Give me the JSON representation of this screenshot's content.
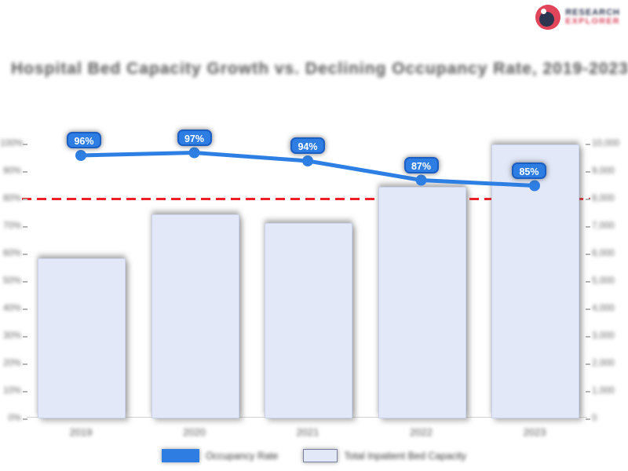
{
  "logo": {
    "icon": "donut-chart-logo-icon",
    "line1": "RESEARCH",
    "line2": "EXPLORER",
    "ring_color": "#E0455A",
    "core_color": "#2C3550"
  },
  "title": {
    "text": "Hospital Bed Capacity Growth vs. Declining Occupancy Rate, 2019-2023"
  },
  "chart_data": {
    "type": "bar",
    "subtype": "combo-bar-line",
    "categories": [
      "2019",
      "2020",
      "2021",
      "2022",
      "2023"
    ],
    "series": [
      {
        "name": "Occupancy Rate",
        "type": "line",
        "axis": "left",
        "unit": "%",
        "values": [
          96,
          97,
          94,
          87,
          85
        ],
        "point_labels": [
          "96%",
          "97%",
          "94%",
          "87%",
          "85%"
        ],
        "color": "#2E7FE3"
      },
      {
        "name": "Total Inpatient Bed Capacity",
        "type": "bar",
        "axis": "right",
        "values": [
          5850,
          7450,
          7150,
          8450,
          10000
        ],
        "color": "#E2E8F8",
        "border_color": "#C9D2EA"
      }
    ],
    "left_axis": {
      "min": 0,
      "max": 100,
      "ticks": [
        "100%",
        "90%",
        "80%",
        "70%",
        "60%",
        "50%",
        "40%",
        "30%",
        "20%",
        "10%",
        "0%"
      ]
    },
    "right_axis": {
      "min": 0,
      "max": 10000,
      "ticks": [
        "10,000",
        "9,000",
        "8,000",
        "7,000",
        "6,000",
        "5,000",
        "4,000",
        "3,000",
        "2,000",
        "1,000",
        "0"
      ]
    },
    "threshold": {
      "value": 80,
      "color": "#F01E26",
      "style": "dashed"
    },
    "legend": [
      {
        "label": "Occupancy Rate",
        "color": "#2E7DE2",
        "border": "#6f6f6f"
      },
      {
        "label": "Total Inpatient Bed Capacity",
        "color": "#E2E8F8",
        "border": "#7A81A0"
      }
    ],
    "grid": false,
    "legend_position": "bottom"
  }
}
